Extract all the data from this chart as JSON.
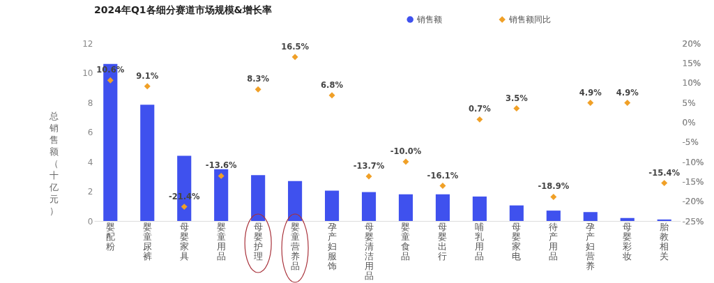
{
  "chart_data": {
    "type": "bar",
    "title": "2024年Q1各细分赛道市场规模&增长率",
    "ylabel": "总销售额（十亿元）",
    "categories": [
      "婴配粉",
      "婴童尿裤",
      "母婴家具",
      "婴童用品",
      "母婴护理",
      "婴童营养品",
      "孕产妇服饰",
      "母婴清洁用品",
      "婴童食品",
      "母婴出行",
      "哺乳用品",
      "母婴家电",
      "待产用品",
      "孕产妇营养",
      "母婴彩妆",
      "胎教相关"
    ],
    "series": [
      {
        "name": "销售额",
        "color": "#3f51ee",
        "values": [
          10.6,
          7.85,
          4.4,
          3.5,
          3.1,
          2.7,
          2.05,
          1.95,
          1.8,
          1.8,
          1.65,
          1.05,
          0.7,
          0.6,
          0.2,
          0.1
        ]
      },
      {
        "name": "销售额同比",
        "type": "scatter",
        "axis": "y2",
        "color": "#f0a027",
        "marker": "diamond",
        "values": [
          10.6,
          9.1,
          -21.4,
          -13.6,
          8.3,
          16.5,
          6.8,
          -13.7,
          -10.0,
          -16.1,
          0.7,
          3.5,
          -18.9,
          4.9,
          4.9,
          -15.4
        ],
        "value_labels": [
          "10.6%",
          "9.1%",
          "-21.4%",
          "-13.6%",
          "8.3%",
          "16.5%",
          "6.8%",
          "-13.7%",
          "-10.0%",
          "-16.1%",
          "0.7%",
          "3.5%",
          "-18.9%",
          "4.9%",
          "4.9%",
          "-15.4%"
        ]
      }
    ],
    "ylim": [
      0,
      12
    ],
    "yticks": [
      0,
      2,
      4,
      6,
      8,
      10,
      12
    ],
    "y2lim": [
      -25,
      20
    ],
    "y2ticks": [
      {
        "value": -25,
        "label": "-25%"
      },
      {
        "value": -20,
        "label": "-20%"
      },
      {
        "value": -15,
        "label": "-15%"
      },
      {
        "value": -10,
        "label": "-10%"
      },
      {
        "value": -5,
        "label": "-5%"
      },
      {
        "value": 0,
        "label": "0%"
      },
      {
        "value": 5,
        "label": "5%"
      },
      {
        "value": 10,
        "label": "10%"
      },
      {
        "value": 15,
        "label": "15%"
      },
      {
        "value": 20,
        "label": "20%"
      }
    ],
    "grid": false,
    "legend": "top"
  }
}
